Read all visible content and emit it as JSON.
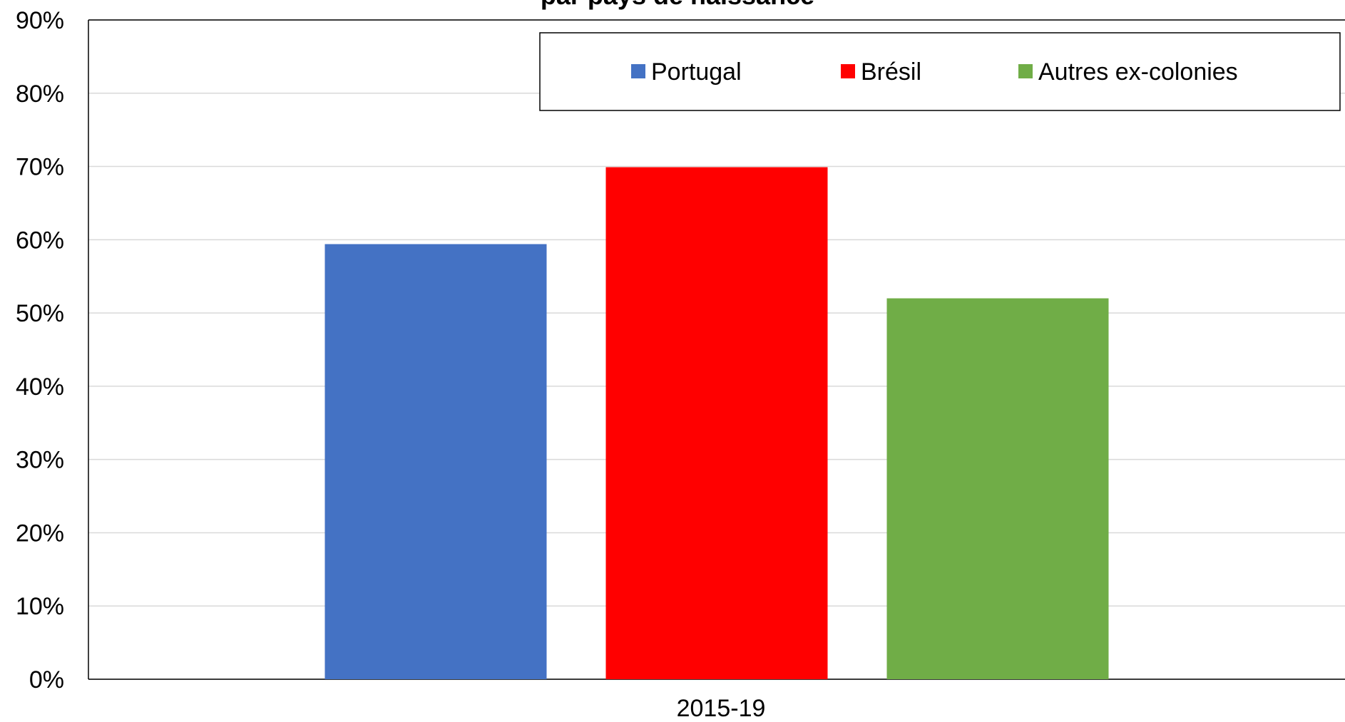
{
  "chart_data": {
    "type": "bar",
    "title": "par pays de naissance",
    "categories": [
      "2015-19"
    ],
    "series": [
      {
        "name": "Portugal",
        "color": "#4472c4",
        "values": [
          59.4
        ]
      },
      {
        "name": "Brésil",
        "color": "#ff0000",
        "values": [
          69.9
        ]
      },
      {
        "name": "Autres ex-colonies",
        "color": "#70ad47",
        "values": [
          52.0
        ]
      }
    ],
    "ylim": [
      0,
      90
    ],
    "yticks": [
      {
        "value": 0,
        "label": "0%"
      },
      {
        "value": 10,
        "label": "10%"
      },
      {
        "value": 20,
        "label": "20%"
      },
      {
        "value": 30,
        "label": "30%"
      },
      {
        "value": 40,
        "label": "40%"
      },
      {
        "value": 50,
        "label": "50%"
      },
      {
        "value": 60,
        "label": "60%"
      },
      {
        "value": 70,
        "label": "70%"
      },
      {
        "value": 80,
        "label": "80%"
      },
      {
        "value": 90,
        "label": "90%"
      }
    ],
    "grid": true,
    "legend": "top-right"
  }
}
